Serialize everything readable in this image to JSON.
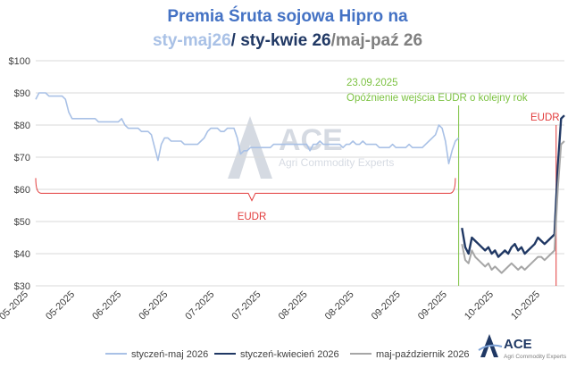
{
  "colors": {
    "series1": "#a9c1e6",
    "series2": "#203864",
    "series3": "#a6a6a6",
    "eudr": "#e23b3b",
    "annotation": "#7cc242",
    "title_main": "#4472c4",
    "logo_dark": "#1f3864",
    "logo_light": "#b8c8e0"
  },
  "title": {
    "line1": "Premia Śruta sojowa Hipro na",
    "line2_part1": "sty-maj26",
    "line2_part2": "/ sty-kwie 26",
    "line2_part3": "/maj-paź 26"
  },
  "annotations": {
    "date": "23.09.2025",
    "note": "Opóźnienie wejścia EUDR o kolejny rok",
    "eudr_bracket": "EUDR",
    "eudr_right": "EUDR"
  },
  "logo": {
    "name": "ACE",
    "subtitle": "Agri Commodity Experts"
  },
  "chart_data": {
    "type": "line",
    "ylim": [
      30,
      100
    ],
    "y_ticks": [
      "$30",
      "$40",
      "$50",
      "$60",
      "$70",
      "$80",
      "$90",
      "$100"
    ],
    "y_tick_values": [
      30,
      40,
      50,
      60,
      70,
      80,
      90,
      100
    ],
    "x_ticks": [
      "05-2025",
      "05-2025",
      "06-2025",
      "06-2025",
      "07-2025",
      "07-2025",
      "08-2025",
      "08-2025",
      "09-2025",
      "09-2025",
      "10-2025",
      "10-2025"
    ],
    "x_range": [
      0,
      160
    ],
    "gridlines": "horizontal",
    "legend_position": "bottom",
    "series": [
      {
        "name": "styczeń-maj 2026",
        "color_key": "series1",
        "x": [
          0,
          1,
          2,
          3,
          4,
          5,
          6,
          7,
          8,
          9,
          10,
          11,
          12,
          13,
          14,
          18,
          19,
          22,
          24,
          25,
          26,
          27,
          28,
          29,
          30,
          31,
          32,
          34,
          35,
          36,
          37,
          38,
          39,
          40,
          41,
          42,
          43,
          44,
          45,
          46,
          47,
          48,
          49,
          50,
          51,
          52,
          53,
          54,
          55,
          56,
          57,
          58,
          59,
          60,
          61,
          62,
          63,
          64,
          65,
          66,
          67,
          68,
          69,
          70,
          71,
          72,
          73,
          74,
          75,
          76,
          77,
          78,
          79,
          80,
          81,
          82,
          83,
          84,
          85,
          86,
          87,
          88,
          89,
          90,
          91,
          92,
          93,
          94,
          95,
          96,
          97,
          98,
          99,
          100,
          101,
          102,
          103,
          104,
          105,
          106,
          107,
          108,
          109,
          110,
          111,
          112,
          113,
          114,
          115,
          116,
          117,
          118,
          119,
          120,
          121,
          122,
          123,
          124,
          125,
          126,
          127,
          128
        ],
        "values": [
          88,
          90,
          90,
          90,
          89,
          89,
          89,
          89,
          89,
          88,
          84,
          82,
          82,
          82,
          82,
          82,
          81,
          81,
          81,
          81,
          82,
          80,
          79,
          79,
          79,
          79,
          78,
          78,
          77,
          73,
          69,
          74,
          76,
          76,
          75,
          75,
          75,
          75,
          74,
          74,
          74,
          74,
          74,
          75,
          76,
          78,
          79,
          79,
          79,
          78,
          78,
          79,
          79,
          79,
          76,
          71,
          72,
          72,
          73,
          73,
          73,
          73,
          73,
          73,
          73,
          74,
          74,
          74,
          74,
          74,
          74,
          74,
          74,
          74,
          74,
          74,
          72,
          74,
          74,
          75,
          74,
          74,
          74,
          74,
          74,
          74,
          73,
          74,
          74,
          75,
          74,
          74,
          75,
          74,
          74,
          74,
          74,
          73,
          73,
          73,
          73,
          74,
          73,
          73,
          73,
          73,
          74,
          73,
          73,
          73,
          73,
          74,
          75,
          76,
          77,
          80,
          79,
          75,
          68,
          72,
          75,
          76
        ]
      },
      {
        "name": "styczeń-kwiecień 2026",
        "color_key": "series2",
        "x": [
          129,
          130,
          131,
          132,
          133,
          134,
          135,
          136,
          137,
          138,
          139,
          140,
          141,
          142,
          143,
          144,
          145,
          146,
          147,
          148,
          149,
          150,
          151,
          152,
          153,
          154,
          155,
          156,
          157,
          158,
          159,
          160
        ],
        "values": [
          48,
          42,
          40,
          45,
          44,
          43,
          42,
          41,
          42,
          40,
          41,
          39,
          40,
          41,
          40,
          42,
          43,
          41,
          42,
          40,
          41,
          42,
          43,
          45,
          44,
          43,
          44,
          45,
          46,
          67,
          82,
          83
        ]
      },
      {
        "name": "maj-październik 2026",
        "color_key": "series3",
        "x": [
          129,
          130,
          131,
          132,
          133,
          134,
          135,
          136,
          137,
          138,
          139,
          140,
          141,
          142,
          143,
          144,
          145,
          146,
          147,
          148,
          149,
          150,
          151,
          152,
          153,
          154,
          155,
          156,
          157,
          158,
          159,
          160
        ],
        "values": [
          43,
          38,
          37,
          41,
          39,
          38,
          37,
          36,
          37,
          35,
          36,
          35,
          34,
          35,
          36,
          37,
          36,
          35,
          36,
          35,
          36,
          37,
          38,
          39,
          39,
          38,
          39,
          40,
          41,
          60,
          74,
          75
        ]
      }
    ]
  }
}
